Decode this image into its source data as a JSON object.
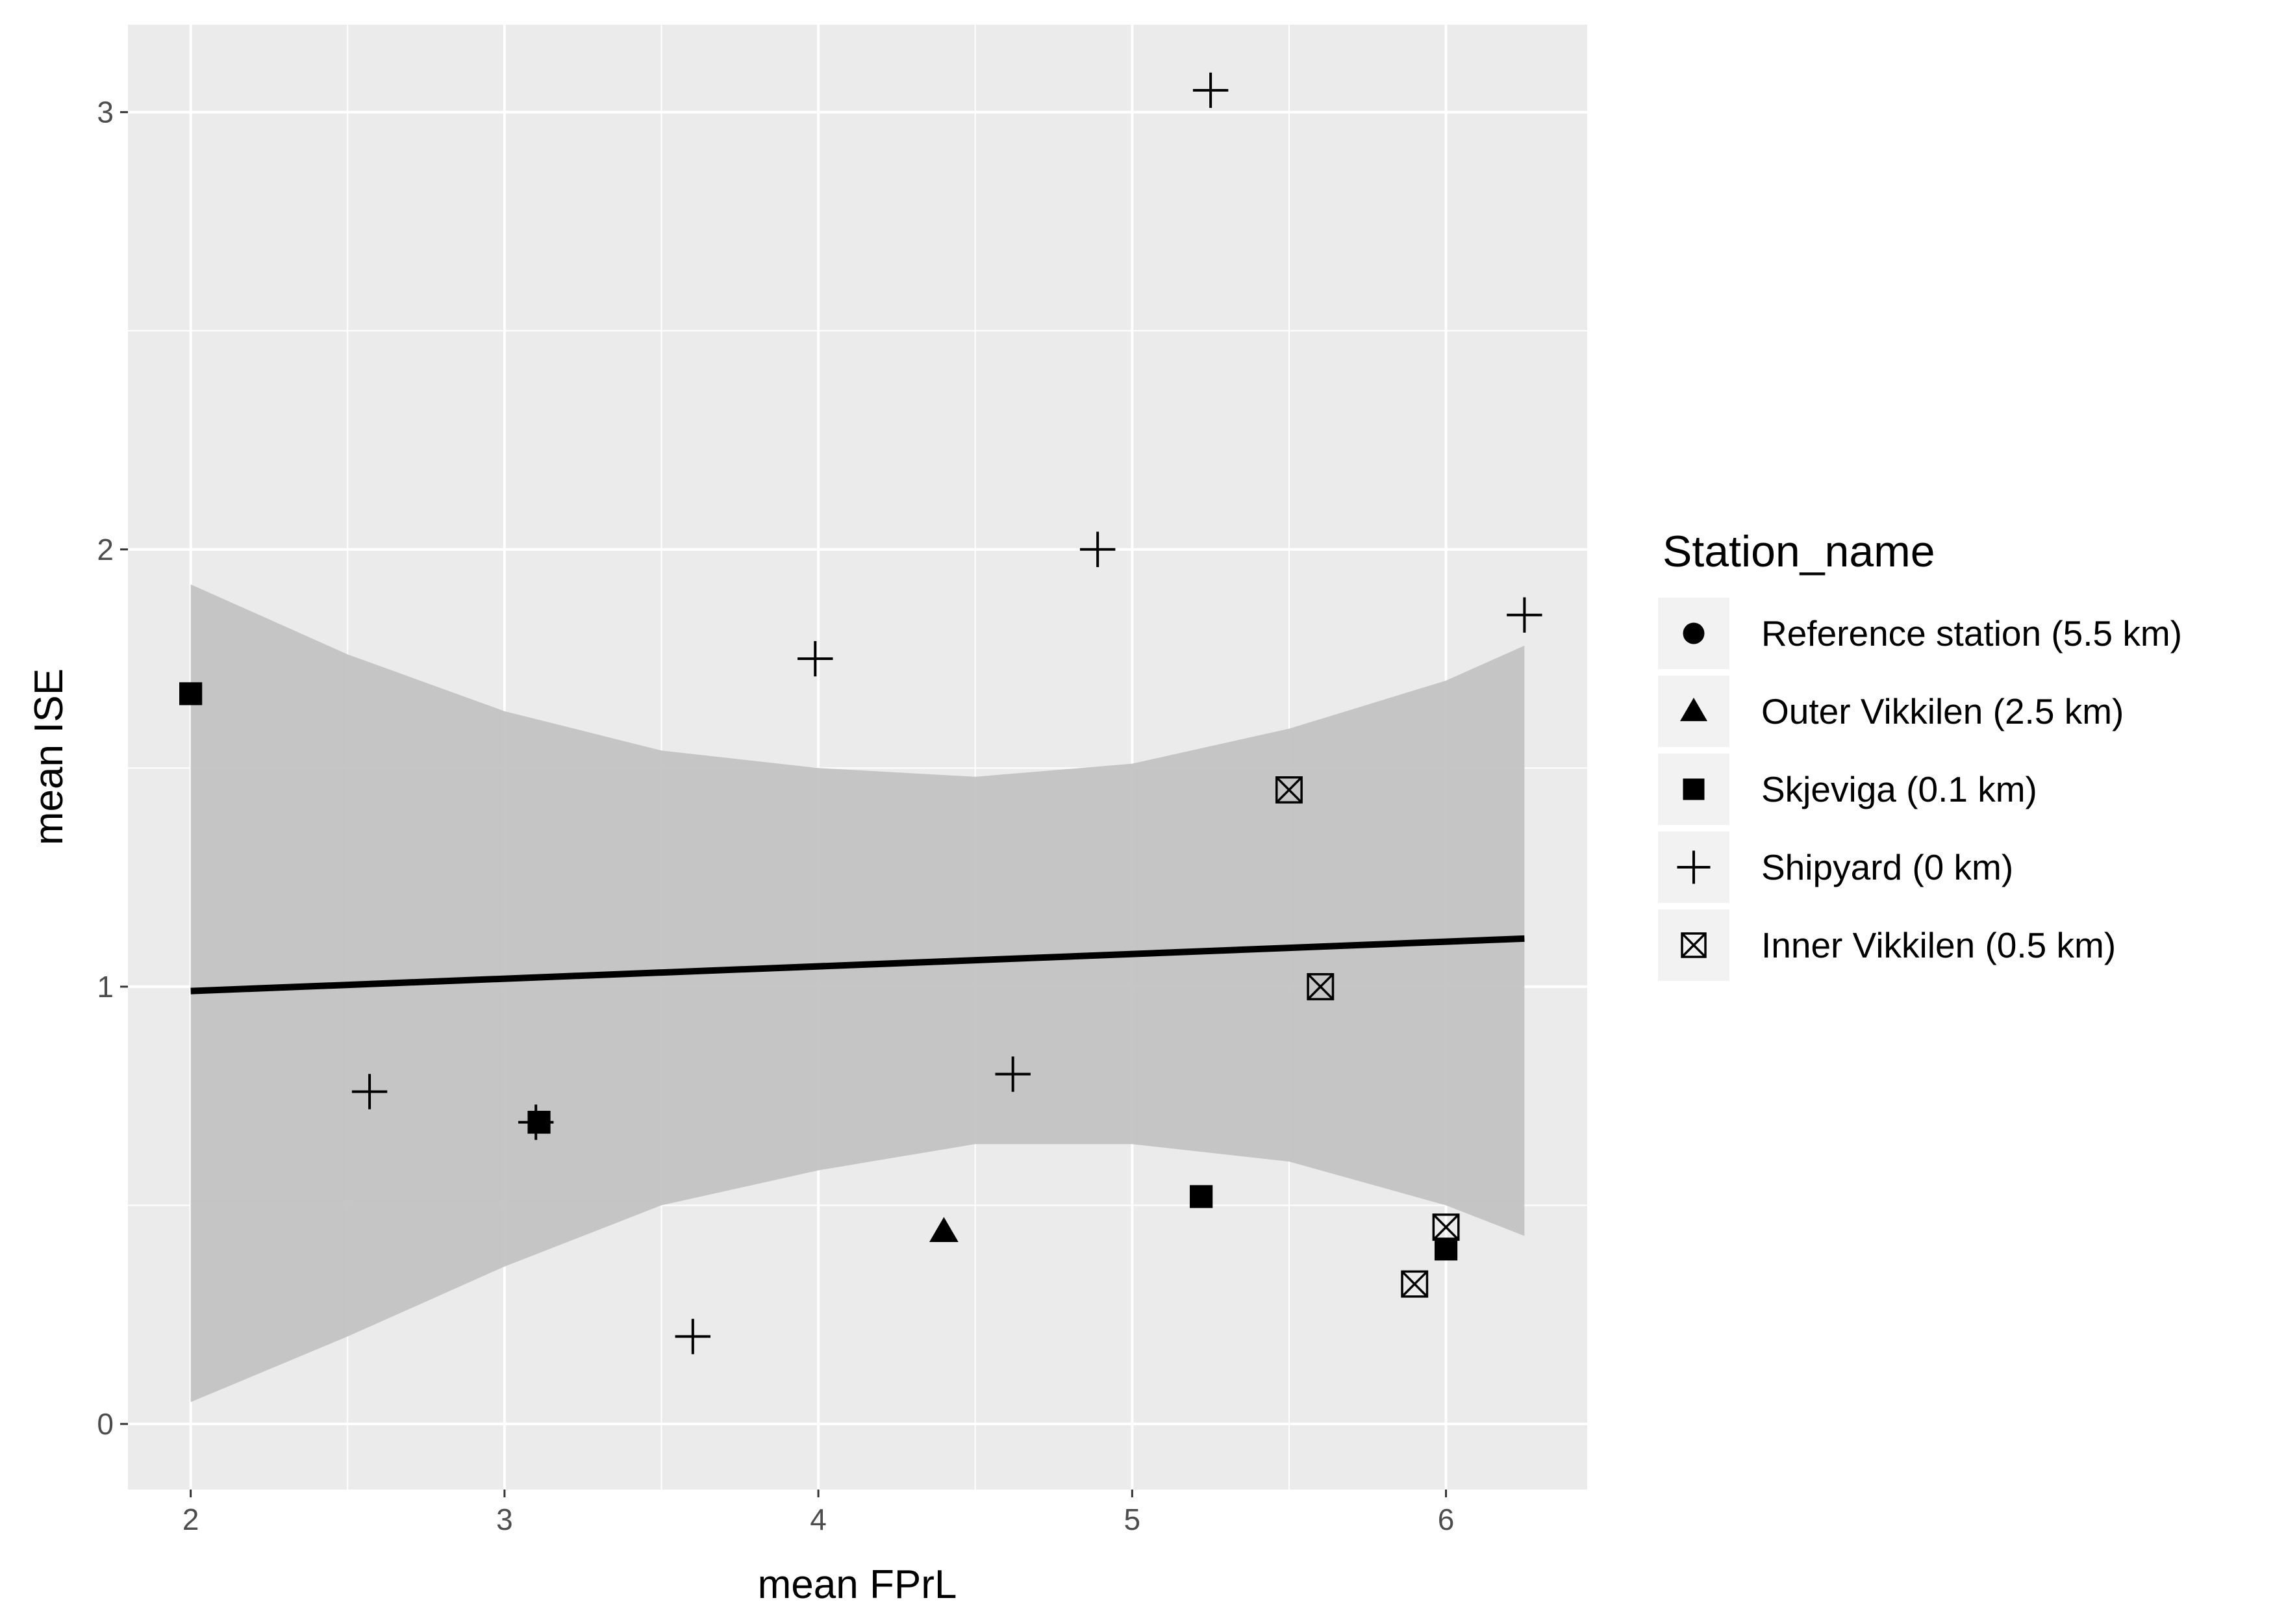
{
  "chart_data": {
    "type": "scatter",
    "xlabel": "mean FPrL",
    "ylabel": "mean ISE",
    "xlim": [
      1.8,
      6.45
    ],
    "ylim": [
      -0.15,
      3.2
    ],
    "x_ticks": [
      2,
      3,
      4,
      5,
      6
    ],
    "x_tick_labels": [
      "2",
      "3",
      "4",
      "5",
      "6"
    ],
    "y_ticks": [
      0,
      1,
      2,
      3
    ],
    "y_tick_labels": [
      "0",
      "1",
      "2",
      "3"
    ],
    "grid": true,
    "legend": {
      "title": "Station_name",
      "placement": "right",
      "entries": [
        {
          "label": "Reference station (5.5 km)",
          "shape": "circle"
        },
        {
          "label": "Outer Vikkilen (2.5 km)",
          "shape": "triangle"
        },
        {
          "label": "Skjeviga (0.1 km)",
          "shape": "square"
        },
        {
          "label": "Shipyard (0 km)",
          "shape": "plus"
        },
        {
          "label": "Inner Vikkilen (0.5 km)",
          "shape": "boxcross"
        }
      ]
    },
    "series": [
      {
        "name": "Outer Vikkilen (2.5 km)",
        "shape": "triangle",
        "points": [
          {
            "x": 4.4,
            "y": 0.44
          }
        ]
      },
      {
        "name": "Skjeviga (0.1 km)",
        "shape": "square",
        "points": [
          {
            "x": 2.0,
            "y": 1.67
          },
          {
            "x": 3.11,
            "y": 0.69
          },
          {
            "x": 5.22,
            "y": 0.52
          },
          {
            "x": 6.0,
            "y": 0.4
          }
        ]
      },
      {
        "name": "Shipyard (0 km)",
        "shape": "plus",
        "points": [
          {
            "x": 5.25,
            "y": 3.05
          },
          {
            "x": 4.89,
            "y": 2.0
          },
          {
            "x": 3.99,
            "y": 1.75
          },
          {
            "x": 6.25,
            "y": 1.85
          },
          {
            "x": 2.57,
            "y": 0.76
          },
          {
            "x": 3.1,
            "y": 0.69
          },
          {
            "x": 4.62,
            "y": 0.8
          },
          {
            "x": 3.6,
            "y": 0.2
          }
        ]
      },
      {
        "name": "Inner Vikkilen (0.5 km)",
        "shape": "boxcross",
        "points": [
          {
            "x": 5.5,
            "y": 1.45
          },
          {
            "x": 5.6,
            "y": 1.0
          },
          {
            "x": 6.0,
            "y": 0.45
          },
          {
            "x": 5.9,
            "y": 0.32
          }
        ]
      }
    ],
    "regression": {
      "method": "linear fit with confidence band",
      "color": "#000000",
      "band_color": "#c3c3c3",
      "line": [
        {
          "x": 2.0,
          "y": 0.99
        },
        {
          "x": 6.25,
          "y": 1.11
        }
      ],
      "band": [
        {
          "x": 2.0,
          "lower": 0.05,
          "upper": 1.92
        },
        {
          "x": 2.5,
          "lower": 0.2,
          "upper": 1.76
        },
        {
          "x": 3.0,
          "lower": 0.36,
          "upper": 1.63
        },
        {
          "x": 3.5,
          "lower": 0.5,
          "upper": 1.54
        },
        {
          "x": 4.0,
          "lower": 0.58,
          "upper": 1.5
        },
        {
          "x": 4.5,
          "lower": 0.64,
          "upper": 1.48
        },
        {
          "x": 5.0,
          "lower": 0.64,
          "upper": 1.51
        },
        {
          "x": 5.5,
          "lower": 0.6,
          "upper": 1.59
        },
        {
          "x": 6.0,
          "lower": 0.5,
          "upper": 1.7
        },
        {
          "x": 6.25,
          "lower": 0.43,
          "upper": 1.78
        }
      ]
    },
    "colors": {
      "panel": "#ebebeb",
      "grid": "#ffffff",
      "points": "#000000"
    }
  }
}
